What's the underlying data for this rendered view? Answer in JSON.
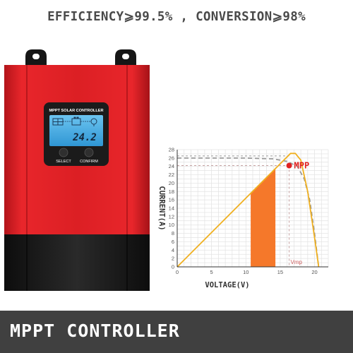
{
  "headline": "EFFICIENCY⩾99.5% , CONVERSION⩾98%",
  "device": {
    "panel_label": "MPPT SOLAR CONTROLLER",
    "lcd_reading": "24.2",
    "button_left": "SELECT",
    "button_right": "CONFIRM",
    "colors": {
      "body": "#d81e22",
      "base": "#1a1a1a",
      "lcd": "#3aa8e0"
    }
  },
  "footer": {
    "title": "MPPT CONTROLLER"
  },
  "chart_data": {
    "type": "line",
    "xlabel": "VOLTAGE(V)",
    "ylabel": "CURRENT(A)",
    "xlim": [
      0,
      22
    ],
    "ylim": [
      0,
      28
    ],
    "x_ticks": [
      "0",
      "5",
      "10",
      "15",
      "20"
    ],
    "y_ticks": [
      "0",
      "2",
      "4",
      "6",
      "8",
      "10",
      "12",
      "14",
      "16",
      "18",
      "20",
      "22",
      "24",
      "26",
      "28"
    ],
    "grid": true,
    "series": [
      {
        "role": "power",
        "style": "solid",
        "color": "#f0b020",
        "x": [
          0,
          16.5,
          17.2,
          18,
          19,
          20,
          20.6
        ],
        "y": [
          0,
          27.1,
          27.1,
          25.5,
          18,
          7,
          0
        ]
      },
      {
        "role": "iv",
        "style": "dashed",
        "color": "#9a9a9a",
        "x": [
          0,
          10,
          14,
          16,
          17.5,
          18.5,
          19.3,
          20,
          20.6
        ],
        "y": [
          26,
          26,
          25.8,
          25.2,
          24,
          21,
          16,
          8,
          0
        ]
      }
    ],
    "shaded_region": {
      "color": "#f5782a",
      "x_from": 10.7,
      "x_to": 14.3
    },
    "mpp": {
      "label": "MPP",
      "x": 16.3,
      "y": 24.2,
      "color": "#e02020"
    },
    "vmp_label": "Vmp",
    "vmp_x": 16.3,
    "reference_y": 26.5
  }
}
